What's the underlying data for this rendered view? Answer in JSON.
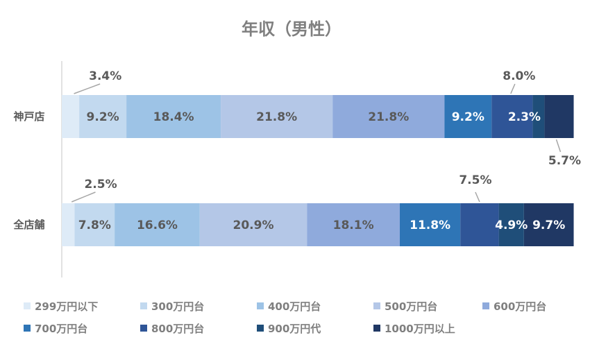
{
  "chart_data": {
    "type": "bar",
    "orientation": "horizontal",
    "stacked": true,
    "normalized_percent": true,
    "title": "年収（男性）",
    "categories": [
      "神戸店",
      "全店舗"
    ],
    "series": [
      {
        "name": "299万円以下",
        "values": [
          3.4,
          2.5
        ],
        "labels": [
          "3.4%",
          "2.5%"
        ],
        "color": "#deebf7",
        "label_color": "#595959"
      },
      {
        "name": "300万円台",
        "values": [
          9.2,
          7.8
        ],
        "labels": [
          "9.2%",
          "7.8%"
        ],
        "color": "#c2d9ef",
        "label_color": "#595959"
      },
      {
        "name": "400万円台",
        "values": [
          18.4,
          16.6
        ],
        "labels": [
          "18.4%",
          "16.6%"
        ],
        "color": "#9dc3e6",
        "label_color": "#595959"
      },
      {
        "name": "500万円台",
        "values": [
          21.8,
          20.9
        ],
        "labels": [
          "21.8%",
          "20.9%"
        ],
        "color": "#b4c7e7",
        "label_color": "#595959"
      },
      {
        "name": "600万円台",
        "values": [
          21.8,
          18.1
        ],
        "labels": [
          "21.8%",
          "18.1%"
        ],
        "color": "#8faadc",
        "label_color": "#595959"
      },
      {
        "name": "700万円台",
        "values": [
          9.2,
          11.8
        ],
        "labels": [
          "9.2%",
          "11.8%"
        ],
        "color": "#2e75b6",
        "label_color": "#ffffff"
      },
      {
        "name": "800万円台",
        "values": [
          8.0,
          7.5
        ],
        "labels": [
          "8.0%",
          "7.5%"
        ],
        "color": "#2f5597",
        "label_color": "#595959"
      },
      {
        "name": "900万円代",
        "values": [
          2.3,
          4.9
        ],
        "labels": [
          "2.3%",
          "4.9%"
        ],
        "color": "#1f4e79",
        "label_color": "#ffffff"
      },
      {
        "name": "1000万円以上",
        "values": [
          5.7,
          9.7
        ],
        "labels": [
          "5.7%",
          "9.7%"
        ],
        "color": "#203864",
        "label_color": "#ffffff"
      }
    ],
    "xlim": [
      0,
      100
    ],
    "grid": false,
    "legend_position": "bottom"
  }
}
